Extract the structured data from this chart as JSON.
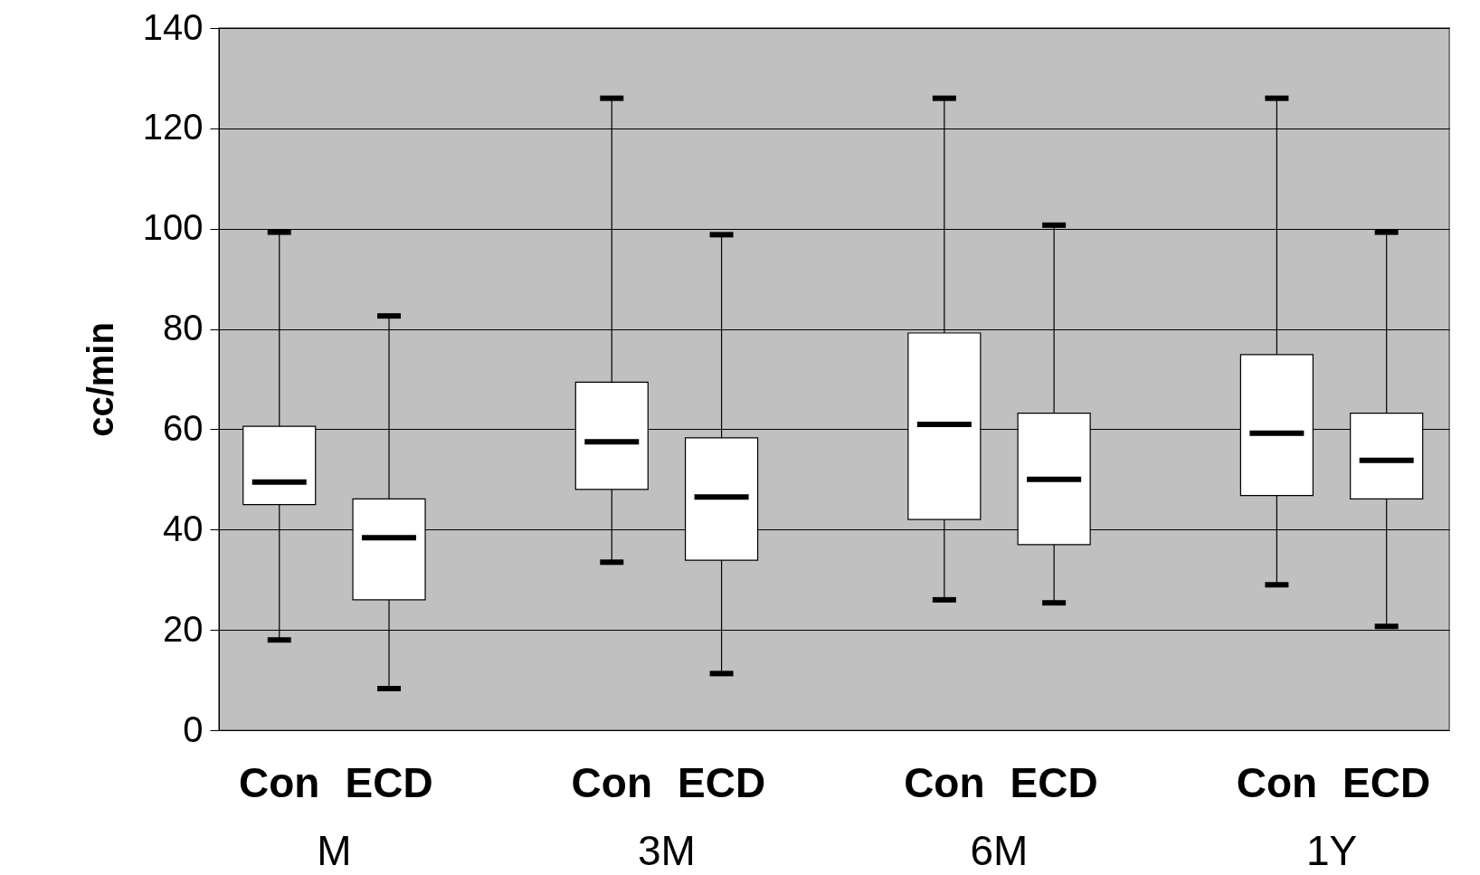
{
  "chart_data": {
    "type": "box",
    "ylabel": "cc/min",
    "categories": [
      "Con",
      "ECD",
      "Con",
      "ECD",
      "Con",
      "ECD",
      "Con",
      "ECD"
    ],
    "boxes": [
      {
        "low": 18,
        "q1": 45,
        "median": 49.5,
        "q3": 60.6,
        "high": 99.3
      },
      {
        "low": 8.3,
        "q1": 26,
        "median": 38.4,
        "q3": 46.1,
        "high": 82.6
      },
      {
        "low": 33.5,
        "q1": 48,
        "median": 57.5,
        "q3": 69.4,
        "high": 126
      },
      {
        "low": 11.3,
        "q1": 33.9,
        "median": 46.5,
        "q3": 58.3,
        "high": 98.8
      },
      {
        "low": 26,
        "q1": 42,
        "median": 61,
        "q3": 79.2,
        "high": 126
      },
      {
        "low": 25.4,
        "q1": 37,
        "median": 50,
        "q3": 63.2,
        "high": 100.7
      },
      {
        "low": 29,
        "q1": 46.8,
        "median": 59.2,
        "q3": 74.9,
        "high": 126
      },
      {
        "low": 20.7,
        "q1": 46.1,
        "median": 53.8,
        "q3": 63.2,
        "high": 99.3
      }
    ],
    "color": "#ffffff",
    "annotations": [
      "M",
      "3M",
      "6M",
      "1Y"
    ],
    "ylim": [
      0,
      140
    ],
    "yticks": [
      0,
      20,
      40,
      60,
      80,
      100,
      120,
      140
    ],
    "grid": "y"
  }
}
